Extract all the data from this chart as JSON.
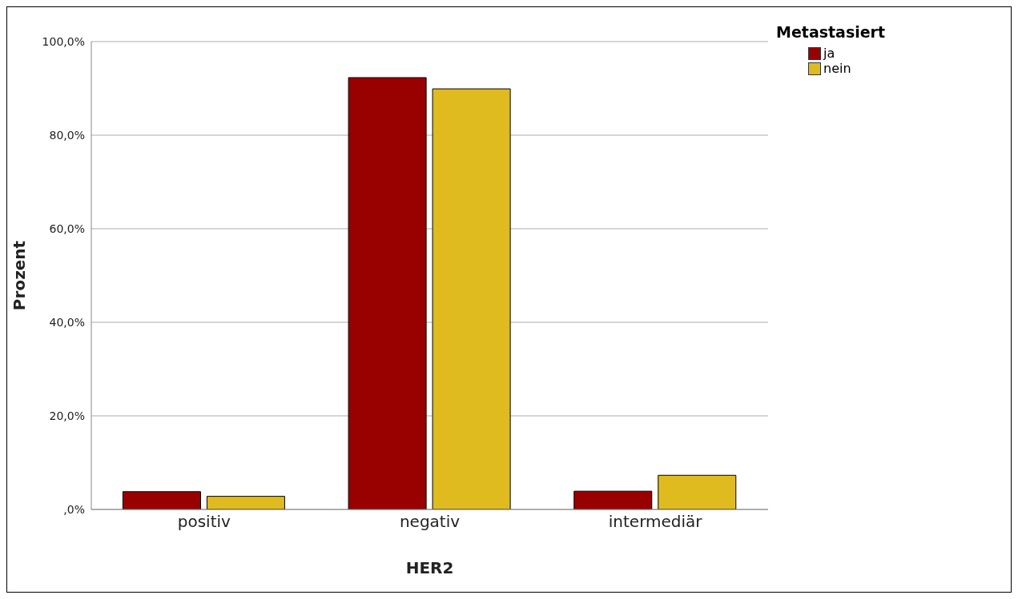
{
  "chart_data": {
    "type": "bar",
    "xlabel": "HER2",
    "ylabel": "Prozent",
    "legend_title": "Metastasiert",
    "categories": [
      "positiv",
      "negativ",
      "intermediär"
    ],
    "series": [
      {
        "name": "ja",
        "color": "#990000",
        "values": [
          3.8,
          92.3,
          3.9
        ]
      },
      {
        "name": "nein",
        "color": "#e0bb20",
        "values": [
          2.8,
          89.9,
          7.3
        ]
      }
    ],
    "ylim": [
      0,
      100
    ],
    "yticks": [
      {
        "value": 0,
        "label": ",0%"
      },
      {
        "value": 20,
        "label": "20,0%"
      },
      {
        "value": 40,
        "label": "40,0%"
      },
      {
        "value": 60,
        "label": "60,0%"
      },
      {
        "value": 80,
        "label": "80,0%"
      },
      {
        "value": 100,
        "label": "100,0%"
      }
    ],
    "grid": "y",
    "legend": "top right"
  }
}
